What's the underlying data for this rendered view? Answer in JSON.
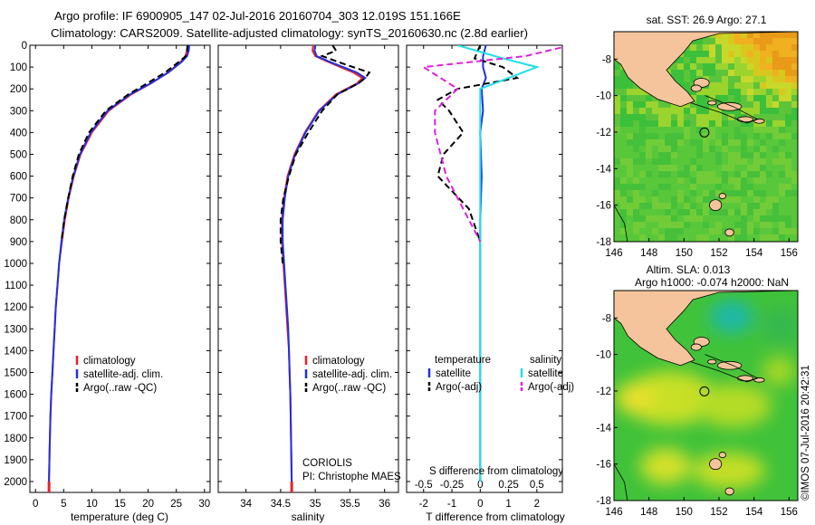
{
  "title": {
    "line1": "Argo profile: IF 6900905_147 02-Jul-2016 20160704_303 12.019S 151.166E",
    "line2": "Climatology: CARS2009. Satellite-adjusted climatology: synTS_20160630.nc (2.8d earlier)"
  },
  "colors": {
    "climatology": "#e8202a",
    "satellite": "#2030e0",
    "argo": "#000000",
    "salinity_satellite": "#20e0e8",
    "salinity_argo": "#e020e0",
    "land": "#f5c49c"
  },
  "chart_data": [
    {
      "type": "line",
      "panel": "temperature",
      "xlabel": "temperature (deg C)",
      "xlim": [
        -1,
        31
      ],
      "xticks": [
        0,
        5,
        10,
        15,
        20,
        25,
        30
      ],
      "ylim": [
        2050,
        0
      ],
      "yticks": [
        0,
        100,
        200,
        300,
        400,
        500,
        600,
        700,
        800,
        900,
        1000,
        1100,
        1200,
        1300,
        1400,
        1500,
        1600,
        1700,
        1800,
        1900,
        2000
      ],
      "series": [
        {
          "name": "climatology",
          "style": "solid",
          "x": [
            27.0,
            26.9,
            26.6,
            25.8,
            23.5,
            20.5,
            17.0,
            13.0,
            10.0,
            8.0,
            6.8,
            5.9,
            5.2,
            4.7,
            4.2,
            3.9,
            3.6,
            3.4,
            3.2,
            3.0,
            2.8,
            2.65,
            2.5,
            2.4
          ],
          "y": [
            0,
            25,
            50,
            75,
            125,
            175,
            225,
            300,
            400,
            500,
            600,
            700,
            800,
            900,
            1000,
            1100,
            1200,
            1300,
            1400,
            1500,
            1600,
            1700,
            1850,
            2000
          ]
        },
        {
          "name": "satellite-adj. clim.",
          "style": "solid",
          "x": [
            27.3,
            27.2,
            26.9,
            26.0,
            23.6,
            20.4,
            16.8,
            12.8,
            9.8,
            7.9,
            6.7,
            5.8,
            5.1,
            4.6,
            4.2,
            3.9,
            3.6,
            3.4,
            3.2,
            3.0,
            2.8,
            2.65,
            2.5,
            2.4
          ],
          "y": [
            0,
            25,
            50,
            75,
            125,
            175,
            225,
            300,
            400,
            500,
            600,
            700,
            800,
            900,
            1000,
            1100,
            1200,
            1300,
            1400,
            1500,
            1600,
            1700,
            1850,
            2000
          ]
        },
        {
          "name": "Argo(..raw -QC)",
          "style": "dashed",
          "x": [
            27.0,
            26.9,
            26.7,
            25.5,
            23.0,
            19.8,
            16.5,
            12.5,
            9.5,
            7.7,
            6.6,
            5.8,
            5.1,
            4.6
          ],
          "y": [
            0,
            25,
            50,
            75,
            125,
            175,
            225,
            300,
            400,
            500,
            600,
            700,
            800,
            900
          ]
        }
      ],
      "legend": [
        "climatology",
        "satellite-adj. clim.",
        "Argo(..raw -QC)"
      ]
    },
    {
      "type": "line",
      "panel": "salinity",
      "xlabel": "salinity",
      "xlim": [
        33.6,
        36.2
      ],
      "xticks": [
        34,
        34.5,
        35,
        35.5,
        36
      ],
      "ylim": [
        2050,
        0
      ],
      "series": [
        {
          "name": "climatology",
          "style": "solid",
          "x": [
            34.97,
            34.96,
            35.0,
            35.18,
            35.55,
            35.68,
            35.6,
            35.3,
            35.05,
            34.85,
            34.7,
            34.6,
            34.55,
            34.52,
            34.52,
            34.54,
            34.56,
            34.58,
            34.6,
            34.62,
            34.63,
            34.64,
            34.65,
            34.66
          ],
          "y": [
            0,
            25,
            50,
            75,
            125,
            150,
            175,
            225,
            300,
            400,
            500,
            600,
            700,
            800,
            900,
            1000,
            1100,
            1200,
            1300,
            1400,
            1500,
            1600,
            1800,
            2000
          ]
        },
        {
          "name": "satellite-adj. clim.",
          "style": "solid",
          "x": [
            35.0,
            34.99,
            35.02,
            35.2,
            35.6,
            35.72,
            35.62,
            35.32,
            35.06,
            34.86,
            34.71,
            34.61,
            34.56,
            34.53,
            34.53,
            34.55,
            34.57,
            34.59,
            34.61,
            34.62,
            34.63,
            34.64,
            34.65,
            34.66
          ],
          "y": [
            0,
            25,
            50,
            75,
            125,
            150,
            175,
            225,
            300,
            400,
            500,
            600,
            700,
            800,
            900,
            1000,
            1100,
            1200,
            1300,
            1400,
            1500,
            1600,
            1800,
            2000
          ]
        },
        {
          "name": "Argo(..raw -QC)",
          "style": "dashed",
          "x": [
            35.25,
            35.3,
            35.1,
            35.45,
            35.78,
            35.72,
            35.62,
            35.32,
            35.1,
            34.9,
            34.72,
            34.62,
            34.54,
            34.5,
            34.5,
            34.53
          ],
          "y": [
            0,
            25,
            50,
            90,
            125,
            150,
            175,
            225,
            300,
            400,
            500,
            600,
            700,
            800,
            900,
            1000
          ]
        }
      ],
      "legend": [
        "climatology",
        "satellite-adj. clim.",
        "Argo(..raw -QC)"
      ],
      "annotation": {
        "line1": "CORIOLIS",
        "line2": "PI: Christophe MAES"
      }
    },
    {
      "type": "line",
      "panel": "difference",
      "xlabel": "T difference from climatology",
      "xlabel2": "S difference from climatology",
      "xlim": [
        -2.6,
        2.9
      ],
      "xticks": [
        -2,
        -1,
        0,
        1,
        2
      ],
      "x2ticks": [
        -0.5,
        -0.25,
        0,
        0.25,
        0.5
      ],
      "ylim": [
        2050,
        0
      ],
      "legend_temperature_title": "temperature",
      "legend_salinity_title": "salinity",
      "legend": [
        "satellite",
        "Argo(-adj)",
        "satellite",
        "Argo(-adj)"
      ],
      "series": [
        {
          "name": "satellite",
          "style": "solid",
          "quantity": "T",
          "x": [
            0.2,
            0.1,
            0.1,
            0.2,
            0.05,
            0.1,
            0.0,
            0.05,
            0.0,
            0.0,
            0.0,
            0.0,
            0.0,
            0.0
          ],
          "y": [
            0,
            50,
            100,
            150,
            200,
            300,
            400,
            600,
            800,
            1000,
            1200,
            1500,
            1800,
            2000
          ]
        },
        {
          "name": "Argo(-adj)",
          "style": "dashed",
          "quantity": "T",
          "x": [
            0.0,
            -0.2,
            0.8,
            1.3,
            -0.8,
            -1.5,
            -1.1,
            -0.6,
            -1.3,
            -1.5,
            -0.4,
            0.0
          ],
          "y": [
            0,
            60,
            100,
            150,
            200,
            250,
            300,
            400,
            500,
            600,
            750,
            900
          ]
        },
        {
          "name": "satellite",
          "style": "solid",
          "quantity": "S",
          "x": [
            -0.2,
            0.2,
            0.5,
            0.0,
            0.0,
            0.0,
            0.0,
            0.0,
            0.0,
            0.0
          ],
          "y": [
            0,
            60,
            100,
            200,
            300,
            400,
            600,
            1000,
            1500,
            2000
          ]
        },
        {
          "name": "Argo(-adj)",
          "style": "dashed",
          "quantity": "S",
          "x": [
            0.8,
            0.4,
            -0.5,
            -0.2,
            -0.4,
            -0.4,
            -0.3,
            -0.2,
            0.0
          ],
          "y": [
            0,
            50,
            100,
            200,
            300,
            400,
            600,
            700,
            900
          ]
        }
      ]
    },
    {
      "type": "heatmap",
      "panel": "sst-map",
      "title": "sat. SST: 26.9 Argo: 27.1",
      "xlim": [
        146,
        156.5
      ],
      "ylim": [
        -18,
        -6.5
      ],
      "xticks": [
        146,
        148,
        150,
        152,
        154,
        156
      ],
      "yticks": [
        -8,
        -10,
        -12,
        -14,
        -16,
        -18
      ],
      "argo_position": {
        "lon": 151.166,
        "lat": -12.019
      }
    },
    {
      "type": "heatmap",
      "panel": "sla-map",
      "title_line1": "Altim. SLA: 0.013",
      "title_line2": "Argo h1000: -0.074 h2000: NaN",
      "xlim": [
        146,
        156.5
      ],
      "ylim": [
        -18,
        -6.5
      ],
      "xticks": [
        146,
        148,
        150,
        152,
        154,
        156
      ],
      "yticks": [
        -8,
        -10,
        -12,
        -14,
        -16,
        -18
      ],
      "argo_position": {
        "lon": 151.166,
        "lat": -12.019
      }
    }
  ],
  "credit": "©IMOS 07-Jul-2016 20:42:31"
}
